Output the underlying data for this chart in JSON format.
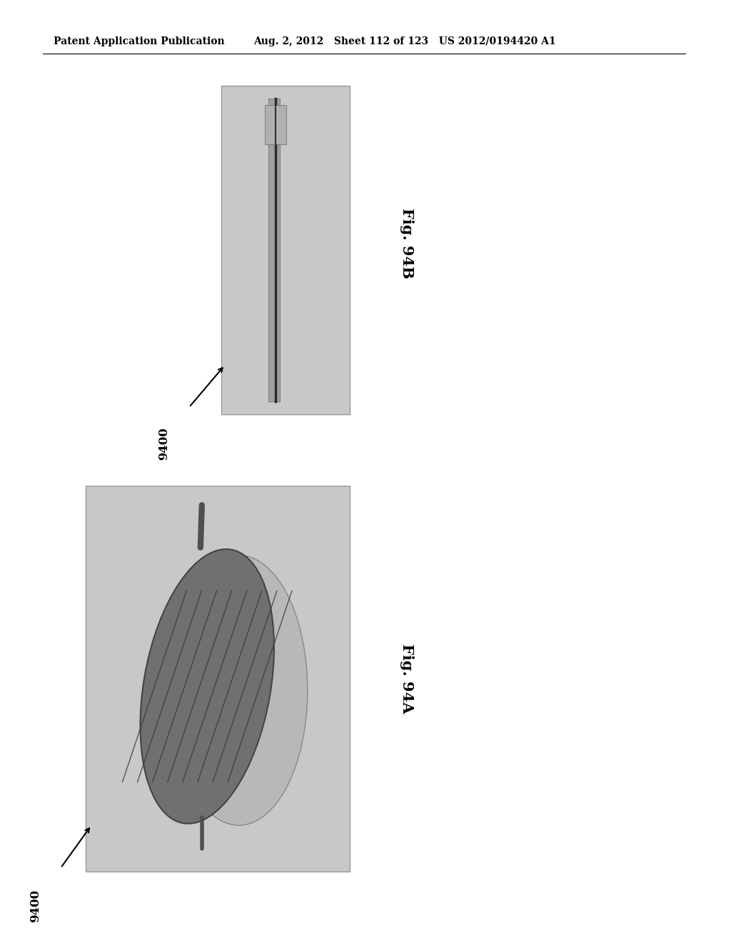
{
  "bg_color": "#ffffff",
  "header_left": "Patent Application Publication",
  "header_mid": "Aug. 2, 2012   Sheet 112 of 123   US 2012/0194420 A1",
  "fig94b_label": "Fig. 94B",
  "fig94a_label": "Fig. 94A",
  "label_9400": "9400",
  "header_fontsize": 10,
  "label_fontsize": 15,
  "annot_fontsize": 12,
  "box_gray": "#c8c8c8",
  "rod_gray": "#909090",
  "rod_dark": "#404040",
  "leaf_dark": "#606060",
  "leaf_medium": "#808080",
  "leaf_light": "#b0b0b0"
}
